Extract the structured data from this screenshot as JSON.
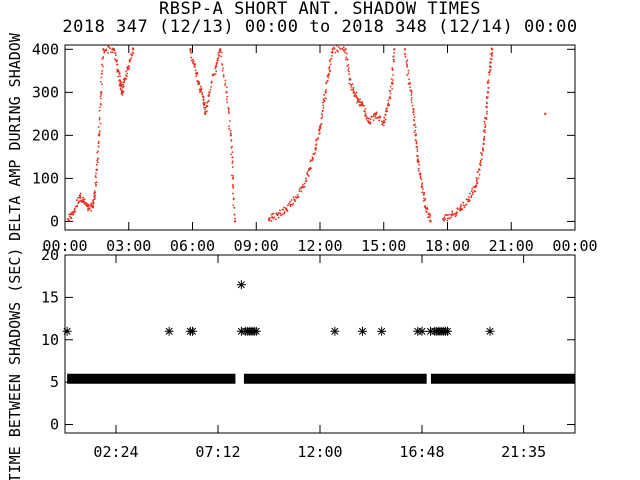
{
  "header": {
    "title": "RBSP-A SHORT ANT. SHADOW TIMES",
    "subtitle": "2018 347 (12/13) 00:00 to 2018 348 (12/14) 00:00"
  },
  "chart_data": [
    {
      "type": "scatter",
      "ylabel": "DELTA AMP DURING SHADOW",
      "x_unit": "hours",
      "xlim": [
        0,
        24
      ],
      "ylim": [
        -20,
        410
      ],
      "xticks": [
        "00:00",
        "03:00",
        "06:00",
        "09:00",
        "12:00",
        "15:00",
        "18:00",
        "21:00",
        "00:00"
      ],
      "yticks": [
        "0",
        "100",
        "200",
        "300",
        "400"
      ],
      "color": "#e8301e",
      "series": [
        {
          "values": [
            [
              0.15,
              5
            ],
            [
              0.4,
              20
            ],
            [
              0.7,
              60
            ],
            [
              0.9,
              45
            ],
            [
              1.1,
              30
            ],
            [
              1.3,
              35
            ],
            [
              1.4,
              60
            ],
            [
              1.5,
              120
            ],
            [
              1.6,
              200
            ],
            [
              1.7,
              300
            ],
            [
              1.8,
              400
            ],
            [
              2.3,
              400
            ],
            [
              2.5,
              350
            ],
            [
              2.6,
              320
            ],
            [
              2.7,
              300
            ],
            [
              2.8,
              330
            ],
            [
              3.0,
              360
            ],
            [
              3.2,
              400
            ]
          ]
        },
        {
          "values": [
            [
              5.9,
              400
            ],
            [
              6.1,
              360
            ],
            [
              6.3,
              320
            ],
            [
              6.5,
              290
            ],
            [
              6.6,
              250
            ],
            [
              6.8,
              300
            ],
            [
              7.1,
              360
            ],
            [
              7.3,
              400
            ],
            [
              7.6,
              300
            ],
            [
              7.8,
              200
            ],
            [
              7.9,
              100
            ],
            [
              8.0,
              0
            ]
          ]
        },
        {
          "values": [
            [
              9.6,
              5
            ],
            [
              10.0,
              15
            ],
            [
              10.4,
              30
            ],
            [
              10.8,
              50
            ],
            [
              11.2,
              80
            ],
            [
              11.5,
              120
            ],
            [
              11.8,
              170
            ],
            [
              12.0,
              220
            ],
            [
              12.2,
              280
            ],
            [
              12.4,
              340
            ],
            [
              12.6,
              400
            ],
            [
              13.2,
              400
            ],
            [
              13.4,
              330
            ],
            [
              13.6,
              300
            ],
            [
              13.8,
              280
            ],
            [
              14.0,
              270
            ],
            [
              14.3,
              230
            ],
            [
              14.6,
              250
            ],
            [
              15.0,
              230
            ],
            [
              15.2,
              270
            ],
            [
              15.4,
              320
            ],
            [
              15.5,
              400
            ]
          ]
        },
        {
          "values": [
            [
              16.0,
              400
            ],
            [
              16.2,
              320
            ],
            [
              16.4,
              260
            ],
            [
              16.5,
              200
            ],
            [
              16.6,
              140
            ],
            [
              16.8,
              80
            ],
            [
              17.0,
              30
            ],
            [
              17.2,
              0
            ]
          ]
        },
        {
          "values": [
            [
              17.8,
              5
            ],
            [
              18.2,
              15
            ],
            [
              18.6,
              30
            ],
            [
              19.0,
              50
            ],
            [
              19.3,
              80
            ],
            [
              19.5,
              120
            ],
            [
              19.7,
              180
            ],
            [
              19.8,
              240
            ],
            [
              19.9,
              300
            ],
            [
              20.0,
              360
            ],
            [
              20.1,
              400
            ],
            [
              22.6,
              250
            ]
          ]
        }
      ]
    },
    {
      "type": "scatter",
      "ylabel": "TIME BETWEEN SHADOWS (SEC)",
      "x_unit": "hours",
      "xlim": [
        0,
        24
      ],
      "ylim": [
        -1,
        20
      ],
      "xticks": [
        "02:24",
        "07:12",
        "12:00",
        "16:48",
        "21:35"
      ],
      "yticks": [
        "0",
        "5",
        "10",
        "15",
        "20"
      ],
      "color": "#000000",
      "baseline": {
        "y": 5.4,
        "from": 0.1,
        "to": 24,
        "gaps": [
          [
            8.0,
            8.4
          ],
          [
            17.0,
            17.2
          ]
        ]
      },
      "series": [
        {
          "values": [
            [
              0.1,
              11
            ],
            [
              4.9,
              11
            ],
            [
              5.9,
              11
            ],
            [
              6.0,
              11
            ],
            [
              8.3,
              16.5
            ],
            [
              8.3,
              11
            ],
            [
              8.5,
              11
            ],
            [
              8.6,
              11
            ],
            [
              8.7,
              11
            ],
            [
              8.8,
              11
            ],
            [
              8.9,
              11
            ],
            [
              9.0,
              11
            ],
            [
              12.7,
              11
            ],
            [
              14.0,
              11
            ],
            [
              14.9,
              11
            ],
            [
              16.6,
              11
            ],
            [
              16.8,
              11
            ],
            [
              17.2,
              11
            ],
            [
              17.4,
              11
            ],
            [
              17.5,
              11
            ],
            [
              17.6,
              11
            ],
            [
              17.7,
              11
            ],
            [
              17.8,
              11
            ],
            [
              17.9,
              11
            ],
            [
              18.0,
              11
            ],
            [
              20.0,
              11
            ]
          ]
        }
      ]
    }
  ]
}
